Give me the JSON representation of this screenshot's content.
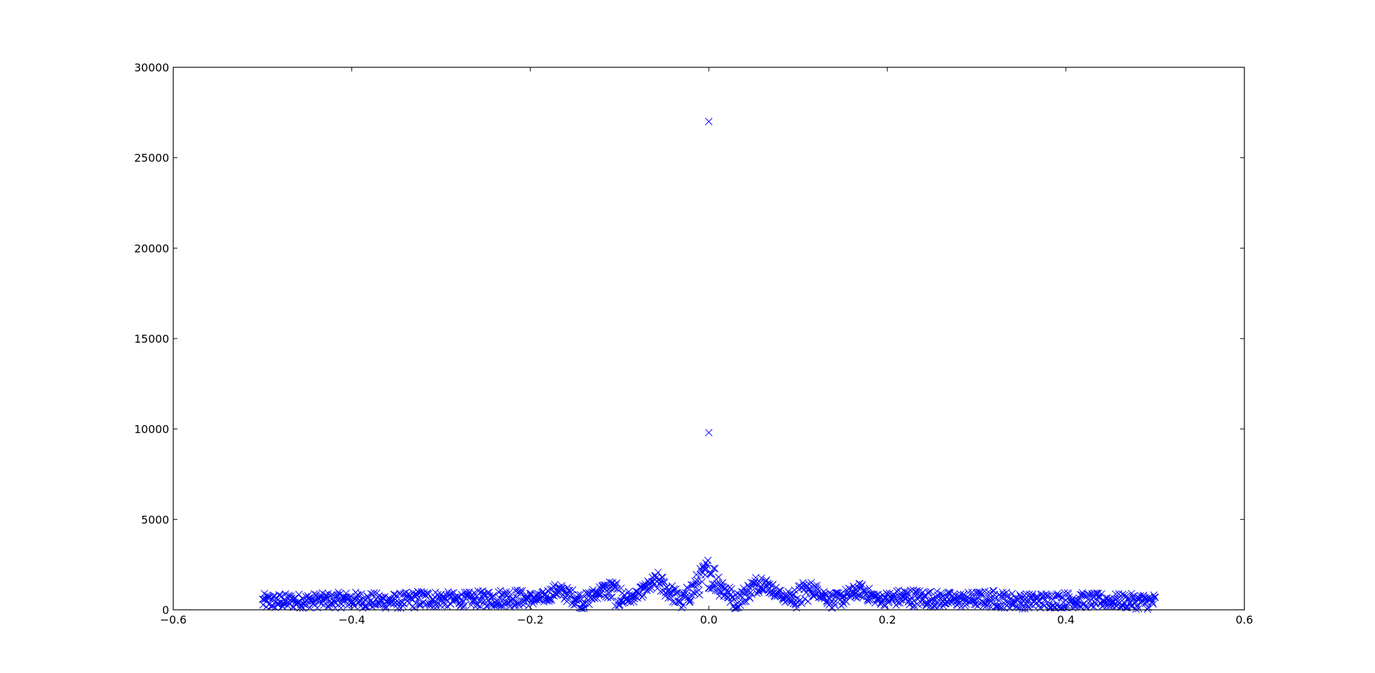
{
  "chart_data": {
    "type": "scatter",
    "title": "",
    "xlabel": "",
    "ylabel": "",
    "xlim": [
      -0.6,
      0.6
    ],
    "ylim": [
      0,
      30000
    ],
    "x_ticks": [
      -0.6,
      -0.4,
      -0.2,
      0.0,
      0.2,
      0.4,
      0.6
    ],
    "x_tick_labels": [
      "−0.6",
      "−0.4",
      "−0.2",
      "0.0",
      "0.2",
      "0.4",
      "0.6"
    ],
    "y_ticks": [
      0,
      5000,
      10000,
      15000,
      20000,
      25000,
      30000
    ],
    "y_tick_labels": [
      "0",
      "5000",
      "10000",
      "15000",
      "20000",
      "25000",
      "30000"
    ],
    "grid": false,
    "legend": "none",
    "marker": "x",
    "color": "#0000ff",
    "series": [
      {
        "outliers": [
          [
            0.0,
            27000
          ],
          [
            0.0,
            9800
          ]
        ],
        "envelope": {
          "x_range": [
            -0.5,
            0.5
          ],
          "count": 1400,
          "upper": [
            [
              -0.5,
              900
            ],
            [
              -0.45,
              900
            ],
            [
              -0.4,
              1000
            ],
            [
              -0.35,
              900
            ],
            [
              -0.32,
              1100
            ],
            [
              -0.28,
              950
            ],
            [
              -0.22,
              1200
            ],
            [
              -0.19,
              900
            ],
            [
              -0.17,
              1500
            ],
            [
              -0.14,
              900
            ],
            [
              -0.11,
              1700
            ],
            [
              -0.085,
              900
            ],
            [
              -0.057,
              2100
            ],
            [
              -0.03,
              900
            ],
            [
              0.0,
              3000
            ],
            [
              0.03,
              900
            ],
            [
              0.057,
              2100
            ],
            [
              0.085,
              900
            ],
            [
              0.11,
              1700
            ],
            [
              0.14,
              900
            ],
            [
              0.17,
              1500
            ],
            [
              0.19,
              900
            ],
            [
              0.22,
              1200
            ],
            [
              0.28,
              950
            ],
            [
              0.32,
              1100
            ],
            [
              0.35,
              900
            ],
            [
              0.4,
              1000
            ],
            [
              0.45,
              900
            ],
            [
              0.5,
              900
            ]
          ],
          "lower": [
            [
              -0.5,
              0
            ],
            [
              -0.45,
              100
            ],
            [
              -0.4,
              100
            ],
            [
              -0.35,
              50
            ],
            [
              -0.3,
              150
            ],
            [
              -0.25,
              150
            ],
            [
              -0.2,
              200
            ],
            [
              -0.18,
              400
            ],
            [
              -0.17,
              700
            ],
            [
              -0.14,
              0
            ],
            [
              -0.12,
              800
            ],
            [
              -0.1,
              0
            ],
            [
              -0.06,
              1100
            ],
            [
              -0.03,
              0
            ],
            [
              0.0,
              1200
            ],
            [
              0.03,
              0
            ],
            [
              0.06,
              1100
            ],
            [
              0.1,
              0
            ],
            [
              0.12,
              800
            ],
            [
              0.14,
              0
            ],
            [
              0.17,
              700
            ],
            [
              0.18,
              400
            ],
            [
              0.2,
              200
            ],
            [
              0.25,
              150
            ],
            [
              0.3,
              150
            ],
            [
              0.35,
              50
            ],
            [
              0.4,
              100
            ],
            [
              0.45,
              100
            ],
            [
              0.5,
              0
            ]
          ]
        }
      }
    ]
  }
}
